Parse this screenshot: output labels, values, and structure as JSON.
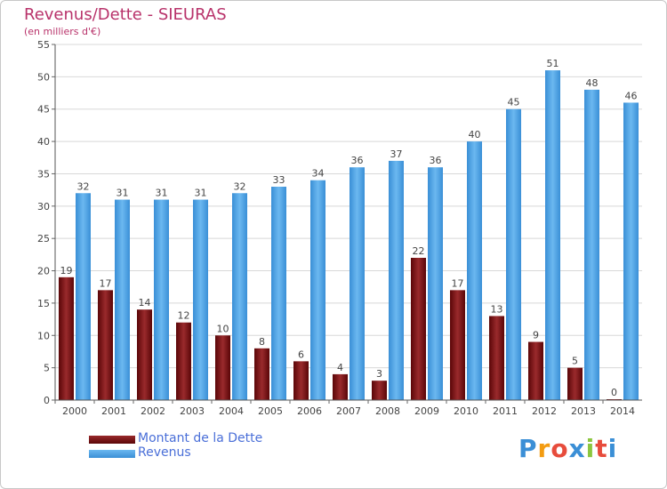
{
  "title": "Revenus/Dette - SIEURAS",
  "subtitle": "(en milliers d'€)",
  "legend": {
    "debt": "Montant de la Dette",
    "revenue": "Revenus"
  },
  "logo": {
    "text": "Proxiti",
    "letters": [
      "P",
      "r",
      "o",
      "x",
      "i",
      "t",
      "i"
    ],
    "colors": [
      "#3b8fd6",
      "#f39c12",
      "#e74c3c",
      "#3b8fd6",
      "#8cc63f",
      "#e74c3c",
      "#3b8fd6"
    ]
  },
  "colors": {
    "debt": "#7a0f12",
    "revenue": "#4aa3e8"
  },
  "chart_data": {
    "type": "bar",
    "categories": [
      "2000",
      "2001",
      "2002",
      "2003",
      "2004",
      "2005",
      "2006",
      "2007",
      "2008",
      "2009",
      "2010",
      "2011",
      "2012",
      "2013",
      "2014"
    ],
    "series": [
      {
        "name": "Montant de la Dette",
        "values": [
          19,
          17,
          14,
          12,
          10,
          8,
          6,
          4,
          3,
          22,
          17,
          13,
          9,
          5,
          0
        ]
      },
      {
        "name": "Revenus",
        "values": [
          32,
          31,
          31,
          31,
          32,
          33,
          34,
          36,
          37,
          36,
          40,
          45,
          51,
          48,
          46
        ]
      }
    ],
    "title": "Revenus/Dette - SIEURAS",
    "subtitle": "(en milliers d'€)",
    "ylim": [
      0,
      55
    ],
    "yticks": [
      0,
      5,
      10,
      15,
      20,
      25,
      30,
      35,
      40,
      45,
      50,
      55
    ],
    "grid": true,
    "legend_position": "bottom-left"
  }
}
